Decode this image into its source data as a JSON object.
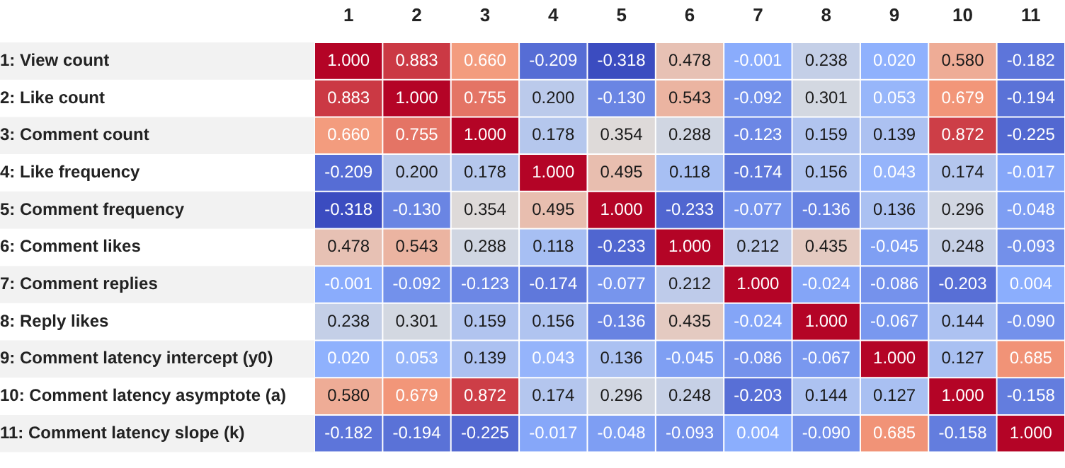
{
  "chart_data": {
    "type": "heatmap",
    "categories": [
      "1",
      "2",
      "3",
      "4",
      "5",
      "6",
      "7",
      "8",
      "9",
      "10",
      "11"
    ],
    "y_categories": [
      "1: View count",
      "2: Like count",
      "3: Comment count",
      "4: Like frequency",
      "5: Comment frequency",
      "6: Comment likes",
      "7: Comment replies",
      "8: Reply likes",
      "9: Comment latency intercept (y0)",
      "10: Comment latency asymptote (a)",
      "11: Comment latency slope (k)"
    ],
    "cells": [
      [
        1.0,
        0.883,
        0.66,
        -0.209,
        -0.318,
        0.478,
        -0.001,
        0.238,
        0.02,
        0.58,
        -0.182
      ],
      [
        0.883,
        1.0,
        0.755,
        0.2,
        -0.13,
        0.543,
        -0.092,
        0.301,
        0.053,
        0.679,
        -0.194
      ],
      [
        0.66,
        0.755,
        1.0,
        0.178,
        0.354,
        0.288,
        -0.123,
        0.159,
        0.139,
        0.872,
        -0.225
      ],
      [
        -0.209,
        0.2,
        0.178,
        1.0,
        0.495,
        0.118,
        -0.174,
        0.156,
        0.043,
        0.174,
        -0.017
      ],
      [
        -0.318,
        -0.13,
        0.354,
        0.495,
        1.0,
        -0.233,
        -0.077,
        -0.136,
        0.136,
        0.296,
        -0.048
      ],
      [
        0.478,
        0.543,
        0.288,
        0.118,
        -0.233,
        1.0,
        0.212,
        0.435,
        -0.045,
        0.248,
        -0.093
      ],
      [
        -0.001,
        -0.092,
        -0.123,
        -0.174,
        -0.077,
        0.212,
        1.0,
        -0.024,
        -0.086,
        -0.203,
        0.004
      ],
      [
        0.238,
        0.301,
        0.159,
        0.156,
        -0.136,
        0.435,
        -0.024,
        1.0,
        -0.067,
        0.144,
        -0.09
      ],
      [
        0.02,
        0.053,
        0.139,
        0.043,
        0.136,
        -0.045,
        -0.086,
        -0.067,
        1.0,
        0.127,
        0.685
      ],
      [
        0.58,
        0.679,
        0.872,
        0.174,
        0.296,
        0.248,
        -0.203,
        0.144,
        0.127,
        1.0,
        -0.158
      ],
      [
        -0.182,
        -0.194,
        -0.225,
        -0.017,
        -0.048,
        -0.093,
        0.004,
        -0.09,
        0.685,
        -0.158,
        1.0
      ]
    ],
    "cell_labels": [
      [
        "1.000",
        "0.883",
        "0.660",
        "-0.209",
        "-0.318",
        "0.478",
        "-0.001",
        "0.238",
        "0.020",
        "0.580",
        "-0.182"
      ],
      [
        "0.883",
        "1.000",
        "0.755",
        "0.200",
        "-0.130",
        "0.543",
        "-0.092",
        "0.301",
        "0.053",
        "0.679",
        "-0.194"
      ],
      [
        "0.660",
        "0.755",
        "1.000",
        "0.178",
        "0.354",
        "0.288",
        "-0.123",
        "0.159",
        "0.139",
        "0.872",
        "-0.225"
      ],
      [
        "-0.209",
        "0.200",
        "0.178",
        "1.000",
        "0.495",
        "0.118",
        "-0.174",
        "0.156",
        "0.043",
        "0.174",
        "-0.017"
      ],
      [
        "-0.318",
        "-0.130",
        "0.354",
        "0.495",
        "1.000",
        "-0.233",
        "-0.077",
        "-0.136",
        "0.136",
        "0.296",
        "-0.048"
      ],
      [
        "0.478",
        "0.543",
        "0.288",
        "0.118",
        "-0.233",
        "1.000",
        "0.212",
        "0.435",
        "-0.045",
        "0.248",
        "-0.093"
      ],
      [
        "-0.001",
        "-0.092",
        "-0.123",
        "-0.174",
        "-0.077",
        "0.212",
        "1.000",
        "-0.024",
        "-0.086",
        "-0.203",
        "0.004"
      ],
      [
        "0.238",
        "0.301",
        "0.159",
        "0.156",
        "-0.136",
        "0.435",
        "-0.024",
        "1.000",
        "-0.067",
        "0.144",
        "-0.090"
      ],
      [
        "0.020",
        "0.053",
        "0.139",
        "0.043",
        "0.136",
        "-0.045",
        "-0.086",
        "-0.067",
        "1.000",
        "0.127",
        "0.685"
      ],
      [
        "0.580",
        "0.679",
        "0.872",
        "0.174",
        "0.296",
        "0.248",
        "-0.203",
        "0.144",
        "0.127",
        "1.000",
        "-0.158"
      ],
      [
        "-0.182",
        "-0.194",
        "-0.225",
        "-0.017",
        "-0.048",
        "-0.093",
        "0.004",
        "-0.090",
        "0.685",
        "-0.158",
        "1.000"
      ]
    ]
  }
}
